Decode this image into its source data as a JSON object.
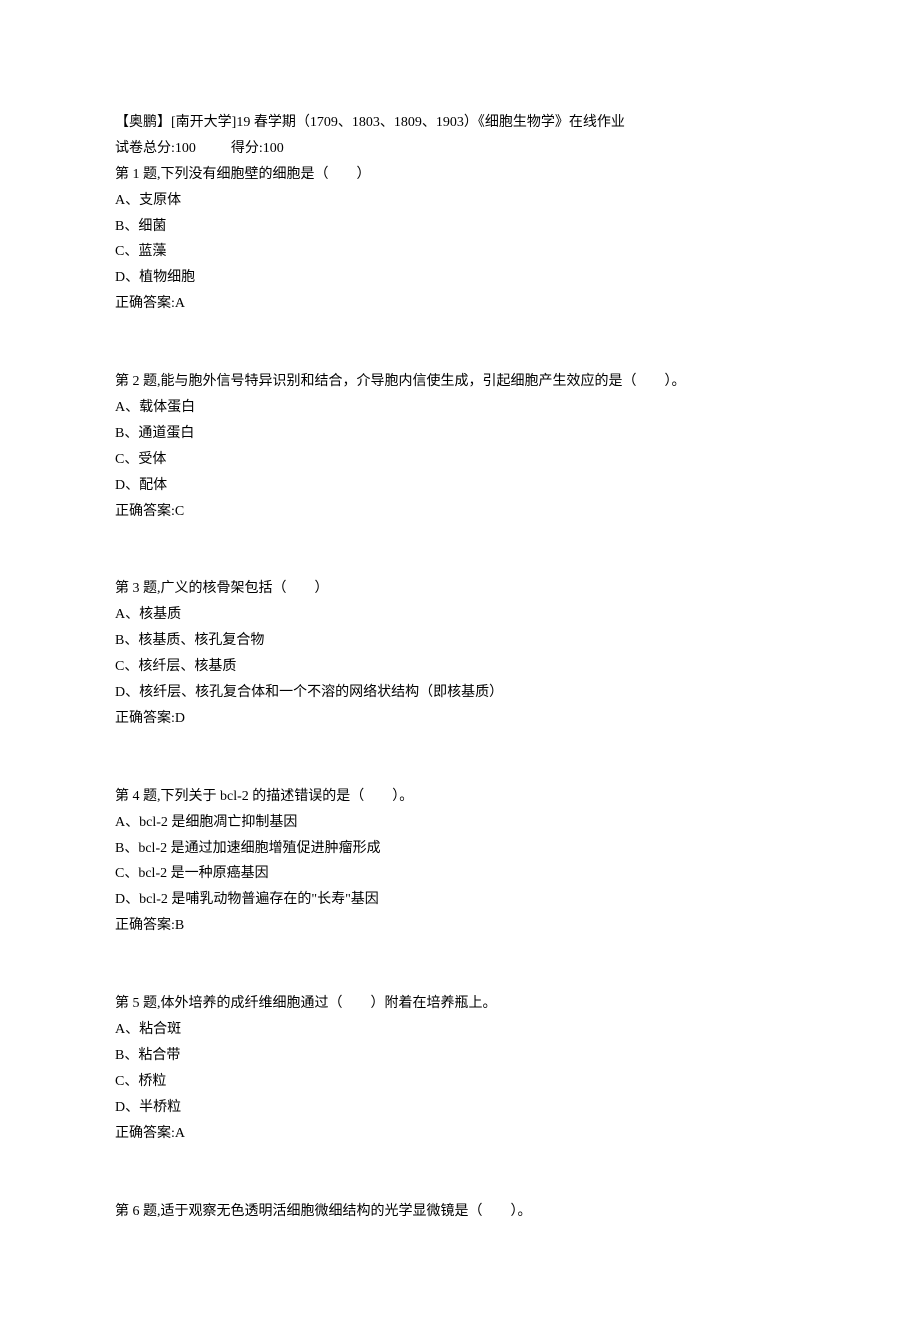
{
  "header": {
    "title": "【奥鹏】[南开大学]19 春学期（1709、1803、1809、1903）《细胞生物学》在线作业",
    "total_score_label": "试卷总分:100",
    "obtained_score_label": "得分:100"
  },
  "questions": [
    {
      "text": "第 1 题,下列没有细胞壁的细胞是（　　）",
      "options": [
        "A、支原体",
        "B、细菌",
        "C、蓝藻",
        "D、植物细胞"
      ],
      "answer": "正确答案:A"
    },
    {
      "text": "第 2 题,能与胞外信号特异识别和结合，介导胞内信使生成，引起细胞产生效应的是（　　）。",
      "options": [
        "A、载体蛋白",
        "B、通道蛋白",
        "C、受体",
        "D、配体"
      ],
      "answer": "正确答案:C"
    },
    {
      "text": "第 3 题,广义的核骨架包括（　　）",
      "options": [
        "A、核基质",
        "B、核基质、核孔复合物",
        "C、核纤层、核基质",
        "D、核纤层、核孔复合体和一个不溶的网络状结构（即核基质）"
      ],
      "answer": "正确答案:D"
    },
    {
      "text": "第 4 题,下列关于 bcl-2 的描述错误的是（　　）。",
      "options": [
        "A、bcl-2 是细胞凋亡抑制基因",
        "B、bcl-2 是通过加速细胞增殖促进肿瘤形成",
        "C、bcl-2 是一种原癌基因",
        "D、bcl-2 是哺乳动物普遍存在的\"长寿\"基因"
      ],
      "answer": "正确答案:B"
    },
    {
      "text": "第 5 题,体外培养的成纤维细胞通过（　　）附着在培养瓶上。",
      "options": [
        "A、粘合斑",
        "B、粘合带",
        "C、桥粒",
        "D、半桥粒"
      ],
      "answer": "正确答案:A"
    },
    {
      "text": "第 6 题,适于观察无色透明活细胞微细结构的光学显微镜是（　　）。",
      "options": [],
      "answer": ""
    }
  ]
}
